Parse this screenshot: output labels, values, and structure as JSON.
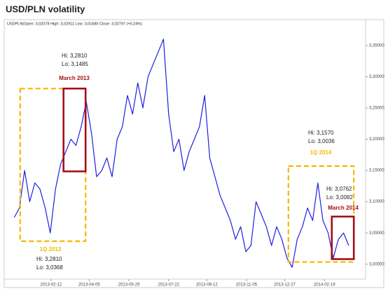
{
  "chart_data": {
    "type": "line",
    "title": "USD/PLN volatility",
    "legend_text": "USDPLN(Open: 3,02078 High: 3,02911 Low: 3,01680 Close: 3,02797 (+0,24%)",
    "x": [
      "2012-12-24",
      "2012-12-31",
      "2013-01-07",
      "2013-01-14",
      "2013-01-21",
      "2013-01-28",
      "2013-02-04",
      "2013-02-11",
      "2013-02-18",
      "2013-02-25",
      "2013-03-04",
      "2013-03-11",
      "2013-03-18",
      "2013-03-25",
      "2013-04-01",
      "2013-04-08",
      "2013-04-15",
      "2013-04-22",
      "2013-04-29",
      "2013-05-06",
      "2013-05-13",
      "2013-05-20",
      "2013-05-27",
      "2013-06-03",
      "2013-06-10",
      "2013-06-17",
      "2013-06-24",
      "2013-07-01",
      "2013-07-08",
      "2013-07-15",
      "2013-07-22",
      "2013-07-29",
      "2013-08-05",
      "2013-08-12",
      "2013-08-19",
      "2013-08-26",
      "2013-09-02",
      "2013-09-09",
      "2013-09-16",
      "2013-09-23",
      "2013-09-30",
      "2013-10-07",
      "2013-10-14",
      "2013-10-21",
      "2013-10-28",
      "2013-11-04",
      "2013-11-11",
      "2013-11-18",
      "2013-11-25",
      "2013-12-02",
      "2013-12-09",
      "2013-12-16",
      "2013-12-23",
      "2013-12-30",
      "2014-01-06",
      "2014-01-13",
      "2014-01-20",
      "2014-01-27",
      "2014-02-03",
      "2014-02-10",
      "2014-02-17",
      "2014-02-24",
      "2014-03-03",
      "2014-03-10",
      "2014-03-17",
      "2014-03-24"
    ],
    "series": [
      {
        "name": "USDPLN",
        "color": "#1f1fe0",
        "values": [
          3.075,
          3.09,
          3.15,
          3.1,
          3.13,
          3.12,
          3.09,
          3.05,
          3.12,
          3.16,
          3.18,
          3.2,
          3.19,
          3.22,
          3.26,
          3.21,
          3.14,
          3.15,
          3.17,
          3.14,
          3.2,
          3.22,
          3.27,
          3.24,
          3.29,
          3.25,
          3.3,
          3.32,
          3.34,
          3.36,
          3.24,
          3.18,
          3.2,
          3.15,
          3.18,
          3.2,
          3.22,
          3.27,
          3.17,
          3.14,
          3.11,
          3.09,
          3.07,
          3.04,
          3.06,
          3.02,
          3.03,
          3.1,
          3.08,
          3.06,
          3.03,
          3.06,
          3.04,
          3.01,
          2.995,
          3.04,
          3.06,
          3.09,
          3.07,
          3.13,
          3.07,
          3.05,
          3.01,
          3.04,
          3.05,
          3.03
        ]
      }
    ],
    "xlim": [
      "2012-12-16",
      "2014-04-16"
    ],
    "xticks": [
      "2013-02-12",
      "2013-04-05",
      "2013-05-29",
      "2013-07-22",
      "2013-09-12",
      "2013-11-05",
      "2013-12-27",
      "2014-02-19"
    ],
    "ylim": [
      2.974,
      3.389
    ],
    "yticks": [
      {
        "value": 3.0,
        "label": "3,00000"
      },
      {
        "value": 3.05,
        "label": "3,05000"
      },
      {
        "value": 3.1,
        "label": "3,10000"
      },
      {
        "value": 3.15,
        "label": "3,15000"
      },
      {
        "value": 3.2,
        "label": "3,20000"
      },
      {
        "value": 3.25,
        "label": "3,25000"
      },
      {
        "value": 3.3,
        "label": "3,30000"
      },
      {
        "value": 3.35,
        "label": "3,35000"
      }
    ],
    "annotations": [
      {
        "label": "1Q 2013",
        "color": "#f5b800",
        "dashed": true,
        "start": "2013-01-01",
        "end": "2013-03-31",
        "hi": {
          "value": 3.281,
          "label": "Hi: 3,2810"
        },
        "lo": {
          "value": 3.0368,
          "label": "Lo: 3,0368"
        }
      },
      {
        "label": "March 2013",
        "color": "#a50f15",
        "dashed": false,
        "start": "2013-03-01",
        "end": "2013-03-31",
        "hi": {
          "value": 3.281,
          "label": "Hi: 3,2810"
        },
        "lo": {
          "value": 3.1485,
          "label": "Lo: 3,1485"
        }
      },
      {
        "label": "1Q 2014",
        "color": "#f5b800",
        "dashed": true,
        "start": "2014-01-01",
        "end": "2014-03-31",
        "hi": {
          "value": 3.157,
          "label": "Hi: 3,1570"
        },
        "lo": {
          "value": 3.0036,
          "label": "Lo: 3,0036"
        }
      },
      {
        "label": "March 2014",
        "color": "#a50f15",
        "dashed": false,
        "start": "2014-03-01",
        "end": "2014-03-31",
        "hi": {
          "value": 3.0762,
          "label": "Hi: 3,0762"
        },
        "lo": {
          "value": 3.0082,
          "label": "Lo: 3,0082"
        }
      }
    ]
  }
}
